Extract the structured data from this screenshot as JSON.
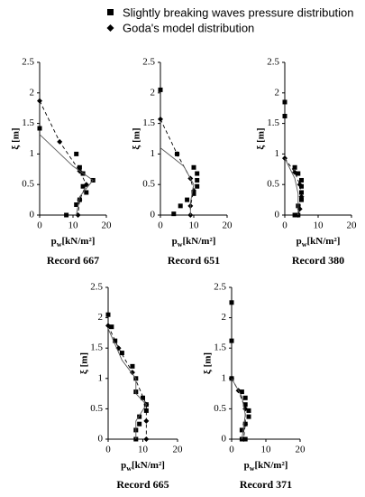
{
  "chart_data": [
    {
      "type": "scatter",
      "title": "Record 667",
      "xlabel": [
        "p",
        "w",
        "[kN/m²]"
      ],
      "ylabel": "ξ [m]",
      "xlim": [
        0,
        20
      ],
      "xticks": [
        0,
        10,
        20
      ],
      "ylim": [
        0,
        2.5
      ],
      "yticks": [
        0,
        0.5,
        1,
        1.5,
        2,
        2.5
      ],
      "series": [
        {
          "name": "Slightly breaking waves pressure distribution",
          "color": "#000000",
          "marker": "square",
          "line": "none",
          "x": [
            0,
            8,
            11,
            11,
            12,
            12,
            13,
            13,
            14,
            16
          ],
          "values": [
            1.42,
            0,
            0.17,
            1,
            0.25,
            0.78,
            0.68,
            0.47,
            0.37,
            0.57
          ]
        },
        {
          "name": "Goda's model distribution",
          "color": "#000000",
          "marker": "diamond",
          "line": "dashed",
          "x": [
            0,
            6,
            12,
            14,
            12,
            11.5
          ],
          "values": [
            1.87,
            1.2,
            0.72,
            0.5,
            0.25,
            0
          ]
        },
        {
          "color": "#555555",
          "marker": "none",
          "line": "solid",
          "x": [
            0,
            10,
            16,
            12,
            11
          ],
          "values": [
            1.32,
            0.8,
            0.57,
            0.3,
            0
          ]
        }
      ]
    },
    {
      "type": "scatter",
      "title": "Record 651",
      "xlabel": [
        "p",
        "w",
        "[kN/m²]"
      ],
      "ylabel": "ξ [m]",
      "xlim": [
        0,
        20
      ],
      "xticks": [
        0,
        10,
        20
      ],
      "ylim": [
        0,
        2.5
      ],
      "yticks": [
        0,
        0.5,
        1,
        1.5,
        2,
        2.5
      ],
      "series": [
        {
          "color": "#000000",
          "marker": "square",
          "line": "none",
          "x": [
            0,
            4,
            6,
            8,
            10,
            10,
            11,
            11,
            11,
            5
          ],
          "values": [
            2.05,
            0.02,
            0.15,
            0.25,
            0.35,
            0.78,
            0.47,
            0.57,
            0.68,
            1
          ]
        },
        {
          "color": "#000000",
          "marker": "diamond",
          "line": "dashed",
          "x": [
            0,
            5,
            9,
            10,
            9,
            9
          ],
          "values": [
            1.57,
            1,
            0.6,
            0.4,
            0.15,
            0
          ]
        },
        {
          "color": "#555555",
          "marker": "none",
          "line": "solid",
          "x": [
            0,
            7,
            10,
            9,
            9
          ],
          "values": [
            1.1,
            0.8,
            0.5,
            0.2,
            0
          ]
        }
      ]
    },
    {
      "type": "scatter",
      "title": "Record 380",
      "xlabel": [
        "p",
        "w",
        "[kN/m²]"
      ],
      "ylabel": "ξ [m]",
      "xlim": [
        0,
        20
      ],
      "xticks": [
        0,
        10,
        20
      ],
      "ylim": [
        0,
        2.5
      ],
      "yticks": [
        0,
        0.5,
        1,
        1.5,
        2,
        2.5
      ],
      "series": [
        {
          "color": "#000000",
          "marker": "square",
          "line": "none",
          "x": [
            0,
            0,
            3,
            4,
            5,
            5,
            5,
            5,
            4,
            3,
            4
          ],
          "values": [
            1.85,
            1.62,
            0.78,
            0.68,
            0.57,
            0.47,
            0.37,
            0.25,
            0.15,
            0,
            0
          ]
        },
        {
          "color": "#000000",
          "marker": "diamond",
          "line": "dashed",
          "x": [
            0,
            3,
            4.5,
            5,
            4.5,
            4
          ],
          "values": [
            0.93,
            0.7,
            0.5,
            0.3,
            0.1,
            0
          ]
        },
        {
          "color": "#555555",
          "marker": "none",
          "line": "solid",
          "x": [
            0,
            3,
            4,
            4
          ],
          "values": [
            0.93,
            0.6,
            0.35,
            0
          ]
        }
      ]
    },
    {
      "type": "scatter",
      "title": "Record 665",
      "xlabel": [
        "p",
        "w",
        "[kN/m²]"
      ],
      "ylabel": "ξ [m]",
      "xlim": [
        0,
        20
      ],
      "xticks": [
        0,
        10,
        20
      ],
      "ylim": [
        0,
        2.5
      ],
      "yticks": [
        0,
        0.5,
        1,
        1.5,
        2,
        2.5
      ],
      "series": [
        {
          "color": "#000000",
          "marker": "square",
          "line": "none",
          "x": [
            0,
            1,
            2,
            4,
            7,
            8,
            8,
            10,
            11,
            11,
            9,
            9,
            8,
            8
          ],
          "values": [
            2.05,
            1.85,
            1.62,
            1.42,
            1.2,
            1,
            0.78,
            0.68,
            0.57,
            0.47,
            0.37,
            0.25,
            0.15,
            0
          ]
        },
        {
          "color": "#000000",
          "marker": "diamond",
          "line": "dashed",
          "x": [
            0,
            3,
            7,
            11,
            11,
            11
          ],
          "values": [
            1.87,
            1.5,
            1.1,
            0.57,
            0.3,
            0
          ]
        },
        {
          "color": "#555555",
          "marker": "none",
          "line": "solid",
          "x": [
            0,
            4,
            8,
            8,
            11,
            8,
            8
          ],
          "values": [
            1.82,
            1.3,
            1,
            0.75,
            0.57,
            0.3,
            0
          ]
        }
      ]
    },
    {
      "type": "scatter",
      "title": "Record 371",
      "xlabel": [
        "p",
        "w",
        "[kN/m²]"
      ],
      "ylabel": "ξ [m]",
      "xlim": [
        0,
        20
      ],
      "xticks": [
        0,
        10,
        20
      ],
      "ylim": [
        0,
        2.5
      ],
      "yticks": [
        0,
        0.5,
        1,
        1.5,
        2,
        2.5
      ],
      "series": [
        {
          "color": "#000000",
          "marker": "square",
          "line": "none",
          "x": [
            0,
            0,
            0,
            3,
            4,
            4,
            5,
            5,
            4,
            3,
            3,
            4
          ],
          "values": [
            2.25,
            1.62,
            1,
            0.78,
            0.68,
            0.57,
            0.47,
            0.37,
            0.25,
            0.15,
            0,
            0
          ]
        },
        {
          "color": "#000000",
          "marker": "diamond",
          "line": "dashed",
          "x": [
            0,
            2,
            4,
            4,
            3.5
          ],
          "values": [
            1,
            0.8,
            0.5,
            0.25,
            0
          ]
        },
        {
          "color": "#555555",
          "marker": "none",
          "line": "solid",
          "x": [
            0,
            3,
            4,
            3
          ],
          "values": [
            1,
            0.7,
            0.4,
            0
          ]
        }
      ]
    }
  ]
}
